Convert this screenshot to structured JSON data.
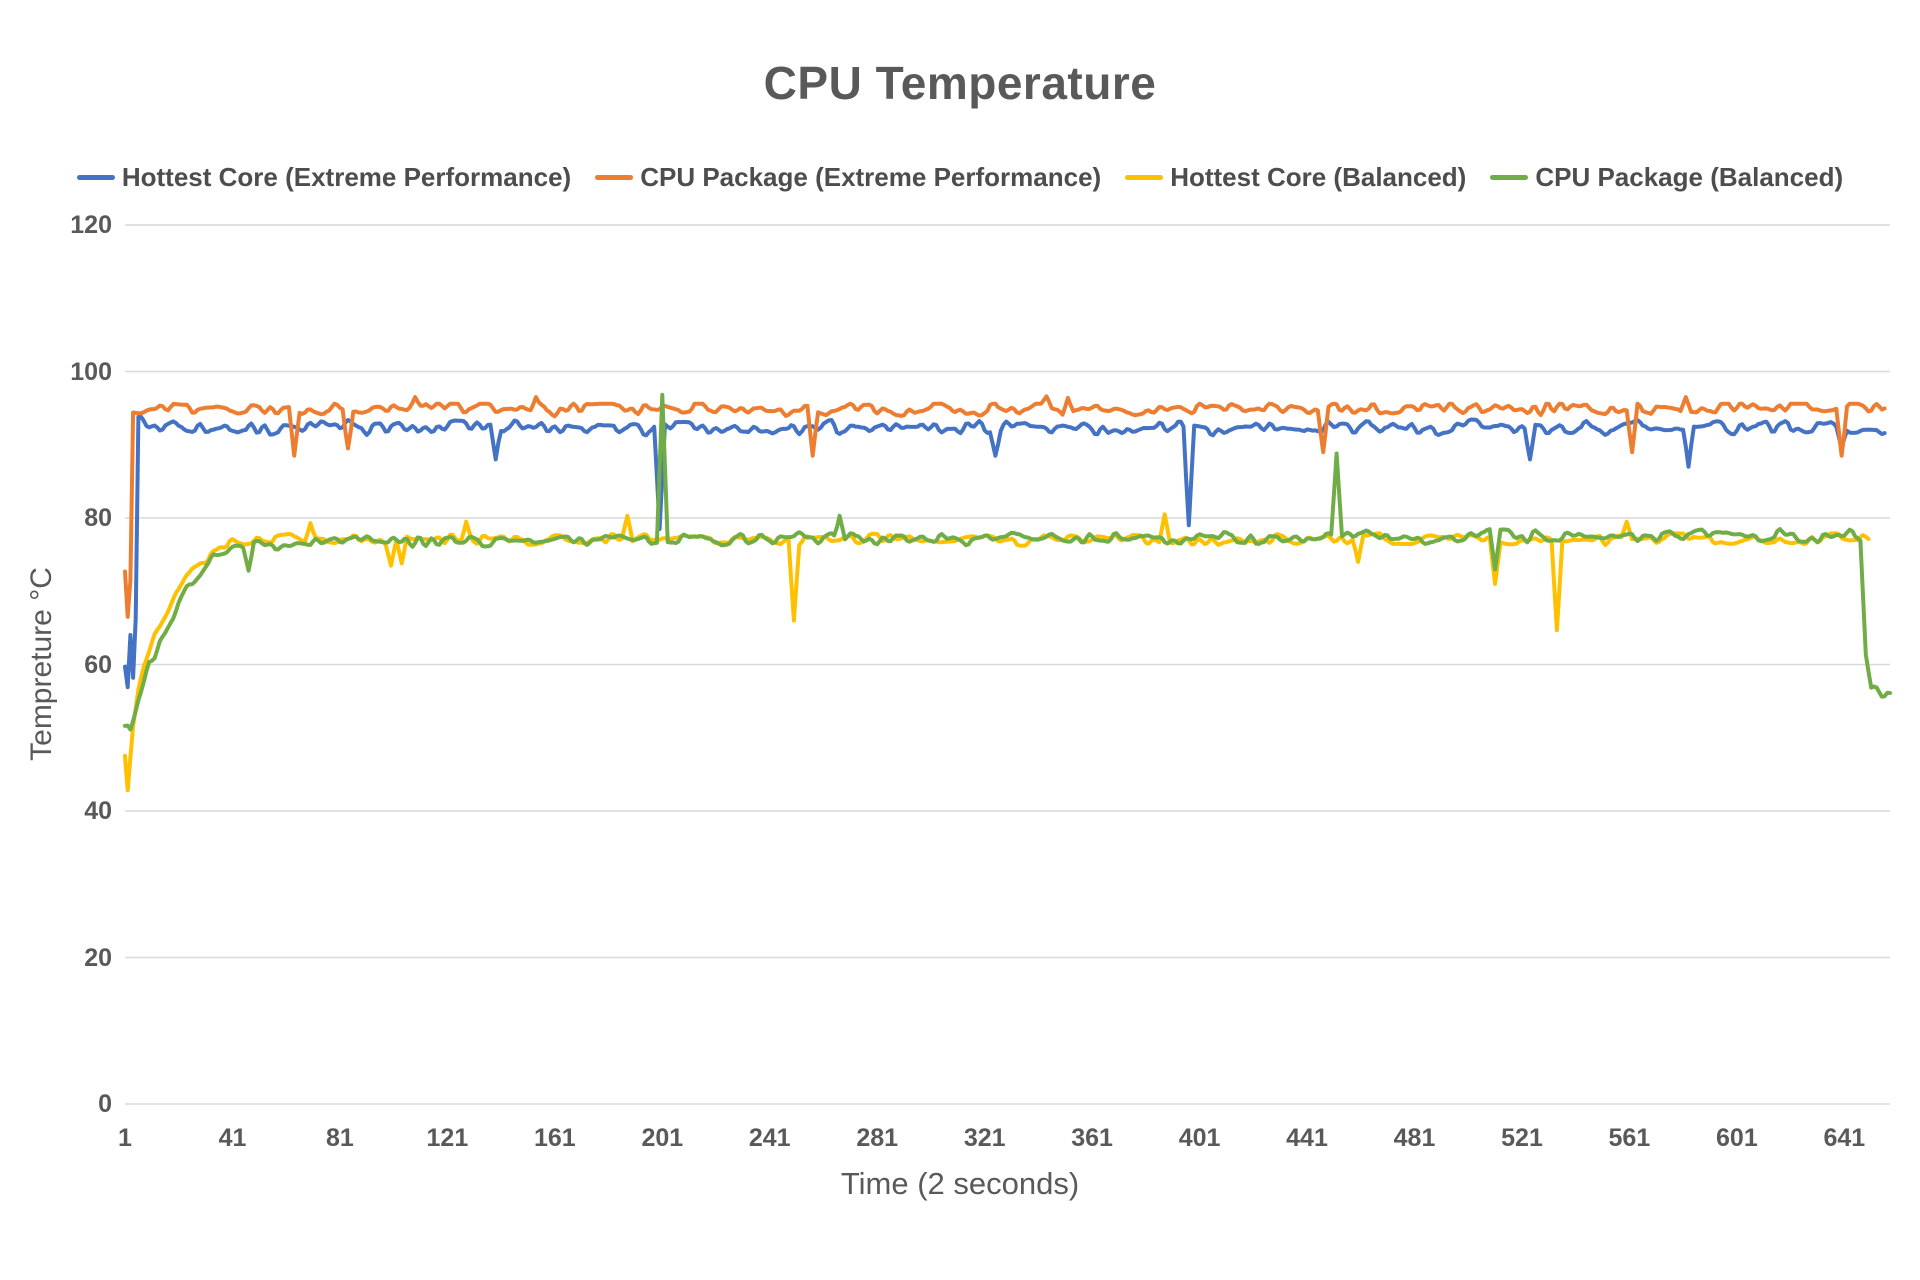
{
  "chart_data": {
    "type": "line",
    "title": "CPU Temperature",
    "xlabel": "Time (2 seconds)",
    "ylabel": "Tempreture °C",
    "x_ticks": [
      1,
      41,
      81,
      121,
      161,
      201,
      241,
      281,
      321,
      361,
      401,
      441,
      481,
      521,
      561,
      601,
      641
    ],
    "y_ticks": [
      0,
      20,
      40,
      60,
      80,
      100,
      120
    ],
    "ylim": [
      0,
      120
    ],
    "xlim": [
      1,
      658
    ],
    "grid": "horizontal",
    "legend_position": "top",
    "background": "#FFFFFF",
    "text_color": "#595959",
    "gridline_color": "#D9D9D9",
    "series": [
      {
        "name": "Hottest Core (Extreme Performance)",
        "color": "#4472C4",
        "baseline_keypoints": [
          [
            1,
            60
          ],
          [
            2,
            57
          ],
          [
            3,
            64
          ],
          [
            4,
            58
          ],
          [
            5,
            66
          ],
          [
            6,
            95
          ],
          [
            8,
            92.5
          ],
          [
            12,
            92.3
          ],
          [
            656,
            92.3
          ]
        ],
        "noise_amp": 1.15,
        "clip_max": 93.8,
        "anomalies": [
          [
            139,
            88,
            2
          ],
          [
            200,
            78.5,
            2
          ],
          [
            325,
            88.5,
            2
          ],
          [
            397,
            79,
            2
          ],
          [
            524,
            88,
            2
          ],
          [
            583,
            87,
            2
          ],
          [
            640,
            89.5,
            2
          ]
        ],
        "end": 656
      },
      {
        "name": "CPU Package (Extreme Performance)",
        "color": "#ED7D31",
        "baseline_keypoints": [
          [
            1,
            73
          ],
          [
            2,
            67
          ],
          [
            3,
            72
          ],
          [
            4,
            95
          ],
          [
            8,
            94.9
          ],
          [
            656,
            94.9
          ]
        ],
        "noise_amp": 1.0,
        "clip_max": 95.6,
        "anomalies": [
          [
            64,
            88.5,
            2
          ],
          [
            84,
            89.5,
            2
          ],
          [
            109,
            96.5,
            3
          ],
          [
            154,
            96.5,
            2
          ],
          [
            257,
            88.5,
            2
          ],
          [
            344,
            96.6,
            2
          ],
          [
            352,
            96.4,
            2
          ],
          [
            447,
            89,
            2
          ],
          [
            562,
            89,
            2
          ],
          [
            582,
            96.5,
            2
          ],
          [
            640,
            88.5,
            2
          ]
        ],
        "end": 656
      },
      {
        "name": "Hottest Core (Balanced)",
        "color": "#FFC000",
        "baseline_keypoints": [
          [
            1,
            48
          ],
          [
            2,
            43
          ],
          [
            4,
            52
          ],
          [
            6,
            57
          ],
          [
            8,
            60
          ],
          [
            12,
            64
          ],
          [
            16,
            67
          ],
          [
            20,
            70
          ],
          [
            24,
            72.5
          ],
          [
            30,
            74.5
          ],
          [
            36,
            76
          ],
          [
            45,
            77
          ],
          [
            650,
            77.2
          ]
        ],
        "noise_amp": 0.9,
        "anomalies": [
          [
            70,
            79.3,
            2
          ],
          [
            100,
            73.5,
            2
          ],
          [
            104,
            73.8,
            2
          ],
          [
            128,
            79.5,
            2
          ],
          [
            188,
            80.3,
            2
          ],
          [
            250,
            66,
            2
          ],
          [
            388,
            80.5,
            2
          ],
          [
            460,
            74,
            2
          ],
          [
            511,
            71,
            2
          ],
          [
            534,
            64.7,
            2
          ],
          [
            560,
            79.5,
            2
          ]
        ],
        "end": 650
      },
      {
        "name": "CPU Package (Balanced)",
        "color": "#70AD47",
        "baseline_keypoints": [
          [
            1,
            51.5
          ],
          [
            3,
            50.5
          ],
          [
            6,
            55
          ],
          [
            10,
            59.5
          ],
          [
            14,
            63
          ],
          [
            18,
            66
          ],
          [
            22,
            68.5
          ],
          [
            26,
            71
          ],
          [
            31,
            73
          ],
          [
            36,
            74.8
          ],
          [
            42,
            75.8
          ],
          [
            55,
            76.3
          ],
          [
            80,
            77
          ],
          [
            644,
            77.5
          ],
          [
            647,
            77.3
          ],
          [
            649,
            62
          ],
          [
            651,
            57.5
          ],
          [
            658,
            56
          ]
        ],
        "noise_amp": 1.0,
        "anomalies": [
          [
            47,
            72.8,
            2
          ],
          [
            201,
            96.8,
            2
          ],
          [
            267,
            80.3,
            2
          ],
          [
            452,
            88.8,
            2
          ],
          [
            511,
            73,
            2
          ]
        ],
        "end": 658
      }
    ]
  }
}
